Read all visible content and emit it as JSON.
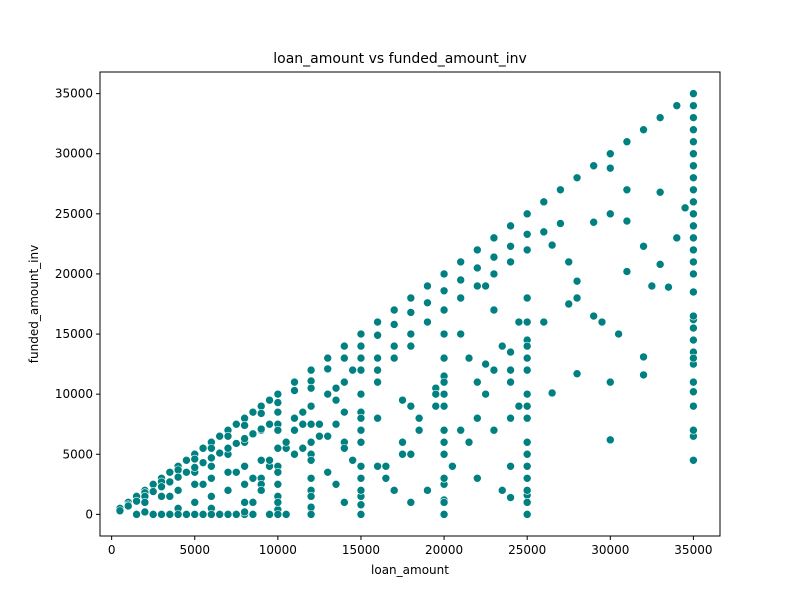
{
  "chart_data": {
    "type": "scatter",
    "title": "loan_amount vs funded_amount_inv",
    "xlabel": "loan_amount",
    "ylabel": "funded_amount_inv",
    "xlim": [
      -700,
      36600
    ],
    "ylim": [
      -1800,
      36800
    ],
    "xticks": [
      0,
      5000,
      10000,
      15000,
      20000,
      25000,
      30000,
      35000
    ],
    "yticks": [
      0,
      5000,
      10000,
      15000,
      20000,
      25000,
      30000,
      35000
    ],
    "xtick_labels": [
      "0",
      "5000",
      "10000",
      "15000",
      "20000",
      "25000",
      "30000",
      "35000"
    ],
    "ytick_labels": [
      "0",
      "5000",
      "10000",
      "15000",
      "20000",
      "25000",
      "30000",
      "35000"
    ],
    "grid": false,
    "marker_color": "#008080",
    "marker_edge": "#ffffff",
    "points": {
      "x": [
        500,
        1000,
        1500,
        2000,
        2500,
        3000,
        3500,
        4000,
        4500,
        5000,
        5500,
        6000,
        6500,
        7000,
        7500,
        8000,
        8500,
        9000,
        9500,
        10000,
        11000,
        12000,
        13000,
        14000,
        15000,
        16000,
        17000,
        18000,
        19000,
        20000,
        21000,
        22000,
        23000,
        24000,
        25000,
        26000,
        27000,
        28000,
        29000,
        30000,
        31000,
        32000,
        33000,
        34000,
        35000,
        1000,
        2000,
        3000,
        4000,
        5000,
        6000,
        7000,
        8000,
        9000,
        10000,
        11000,
        12000,
        13000,
        14000,
        15000,
        16000,
        17000,
        18000,
        19000,
        20000,
        21000,
        22000,
        23000,
        24000,
        25000,
        2000,
        3000,
        4000,
        5000,
        6000,
        7000,
        8000,
        9000,
        10000,
        11000,
        12000,
        13000,
        14000,
        15000,
        16000,
        17000,
        18000,
        19000,
        20000,
        21000,
        22000,
        23000,
        24000,
        25000,
        3000,
        4000,
        5000,
        6000,
        7000,
        8000,
        9000,
        10000,
        12000,
        14000,
        15000,
        16000,
        18000,
        20000,
        22000,
        24000,
        25000,
        4000,
        5000,
        6000,
        8000,
        10000,
        12000,
        15000,
        16000,
        18000,
        20000,
        21000,
        24000,
        25000,
        5000,
        6000,
        7000,
        8000,
        10000,
        12000,
        14000,
        15000,
        17000,
        20000,
        22000,
        24000,
        25000,
        3500,
        5500,
        7500,
        9500,
        11500,
        12500,
        13500,
        15000,
        17500,
        19500,
        20000,
        22500,
        24000,
        25000,
        6000,
        8000,
        10000,
        12000,
        15000,
        18000,
        20000,
        24000,
        25000,
        25000,
        25000,
        25000,
        25000,
        25000,
        25000,
        25000,
        25000,
        25000,
        25000,
        25000,
        25000,
        20000,
        20000,
        20000,
        20000,
        20000,
        20000,
        20000,
        20000,
        20000,
        20000,
        15000,
        15000,
        15000,
        15000,
        15000,
        15000,
        15000,
        15000,
        15000,
        12000,
        12000,
        12000,
        12000,
        12000,
        12000,
        12000,
        12000,
        10000,
        10000,
        10000,
        10000,
        10000,
        10000,
        10000,
        35000,
        35000,
        35000,
        35000,
        35000,
        35000,
        35000,
        35000,
        35000,
        35000,
        35000,
        35000,
        35000,
        35000,
        35000,
        35000,
        35000,
        35000,
        35000,
        35000,
        35000,
        35000,
        35000,
        35000,
        35000,
        35000,
        35000,
        35000,
        35000,
        35000,
        26000,
        26500,
        27000,
        27500,
        28000,
        28000,
        29000,
        29500,
        30000,
        30000,
        30500,
        31000,
        31000,
        32000,
        32000,
        32000,
        33000,
        33500,
        34000,
        26000,
        27500,
        29000,
        30000,
        31000,
        32500,
        34500,
        26500,
        28000,
        30000,
        33000,
        20500,
        21500,
        22000,
        22500,
        23000,
        23500,
        24500,
        21000,
        22000,
        23000,
        24000,
        21000,
        22500,
        23500,
        24500,
        21500,
        23000,
        16500,
        17500,
        18500,
        19500,
        16000,
        17000,
        18000,
        19000,
        16500,
        17500,
        18500,
        19500,
        16000,
        18000,
        13500,
        14500,
        13000,
        14000,
        13500,
        14500,
        13000,
        14000,
        12500,
        13500,
        8500,
        9000,
        9500,
        10500,
        11000,
        11500,
        8500,
        9500,
        10500,
        11500,
        9000,
        10000,
        11000,
        500,
        1000,
        1500,
        2000,
        2500,
        3000,
        3500,
        4000,
        4500,
        5000,
        5500,
        6000,
        6500,
        7000,
        7500,
        8000,
        8500,
        9000,
        9500,
        1500,
        2500,
        3500,
        4500,
        5500,
        6500,
        7500,
        8500,
        9500,
        10500,
        2000,
        3000,
        4000,
        5000,
        6000,
        7000,
        8000,
        9000
      ],
      "y": [
        500,
        1000,
        1500,
        2000,
        2500,
        3000,
        3500,
        4000,
        4500,
        5000,
        5500,
        6000,
        6500,
        7000,
        7500,
        8000,
        8500,
        9000,
        9500,
        10000,
        11000,
        12000,
        13000,
        14000,
        15000,
        16000,
        17000,
        18000,
        19000,
        20000,
        21000,
        22000,
        23000,
        24000,
        25000,
        26000,
        27000,
        28000,
        29000,
        30000,
        31000,
        32000,
        33000,
        34000,
        35000,
        800,
        1800,
        2700,
        3700,
        4600,
        5500,
        6500,
        7400,
        8400,
        9300,
        10300,
        11100,
        12100,
        13000,
        14000,
        14900,
        15800,
        16800,
        17600,
        18600,
        19500,
        20500,
        21400,
        22300,
        23300,
        200,
        1500,
        2000,
        3500,
        4000,
        5000,
        6000,
        7000,
        7500,
        8000,
        9000,
        10000,
        11000,
        12000,
        13000,
        14000,
        15000,
        16000,
        17000,
        18000,
        19000,
        20000,
        21000,
        22000,
        0,
        500,
        1000,
        1500,
        2000,
        2500,
        3000,
        4000,
        5000,
        6000,
        7000,
        8000,
        9000,
        10000,
        11000,
        12000,
        13000,
        0,
        0,
        500,
        1000,
        1500,
        2000,
        3000,
        4000,
        5000,
        6000,
        7000,
        8000,
        9000,
        0,
        0,
        0,
        0,
        0,
        500,
        1000,
        1500,
        2000,
        2500,
        3000,
        4000,
        5000,
        1500,
        2500,
        3500,
        4500,
        5500,
        6500,
        7500,
        8500,
        9500,
        10500,
        11500,
        12500,
        13500,
        14500,
        0,
        200,
        400,
        600,
        800,
        1000,
        1200,
        1400,
        1600,
        0,
        1000,
        2000,
        3000,
        4000,
        6000,
        8000,
        10000,
        12000,
        14000,
        16000,
        18000,
        0,
        1000,
        3000,
        5000,
        7000,
        9000,
        11000,
        13000,
        15000,
        17000,
        0,
        2000,
        4000,
        6000,
        8000,
        10000,
        12000,
        13000,
        14000,
        0,
        1500,
        3000,
        4500,
        6000,
        7500,
        9000,
        10500,
        0,
        1000,
        2500,
        4000,
        5500,
        7000,
        8500,
        4500,
        6500,
        7000,
        10200,
        12500,
        13500,
        14500,
        15500,
        16200,
        20000,
        21000,
        22000,
        23000,
        24000,
        25000,
        26000,
        27000,
        28000,
        29000,
        30000,
        31000,
        32000,
        33000,
        34000,
        35000,
        18500,
        16500,
        13000,
        11000,
        9000,
        16000,
        10100,
        24200,
        17500,
        11700,
        19400,
        24300,
        16000,
        6200,
        11000,
        15000,
        24400,
        20200,
        13100,
        11600,
        22300,
        20800,
        18900,
        23000,
        23500,
        21000,
        16500,
        25000,
        27000,
        19000,
        25500,
        22400,
        18000,
        28800,
        26800,
        4000,
        6000,
        8000,
        10000,
        12000,
        14000,
        16000,
        18000,
        3000,
        7000,
        11000,
        15000,
        19000,
        2000,
        9000,
        13000,
        17000,
        3000,
        5000,
        7000,
        9000,
        11000,
        13000,
        15000,
        2000,
        4000,
        6000,
        8000,
        10000,
        12000,
        14000,
        2500,
        4500,
        6500,
        8500,
        10500,
        12000,
        3500,
        5500,
        7500,
        9500,
        1000,
        2500,
        4000,
        5500,
        7000,
        8500,
        3000,
        4500,
        6000,
        7500,
        2000,
        3500,
        5000,
        300,
        700,
        1100,
        1500,
        1900,
        2300,
        2700,
        3100,
        3500,
        3900,
        4300,
        4700,
        5100,
        5500,
        5900,
        6300,
        6700,
        7100,
        7500,
        0,
        0,
        0,
        0,
        0,
        0,
        0,
        0,
        0,
        0,
        1000,
        1500,
        2000,
        2500,
        3000,
        3500,
        4000,
        4500
      ]
    }
  }
}
